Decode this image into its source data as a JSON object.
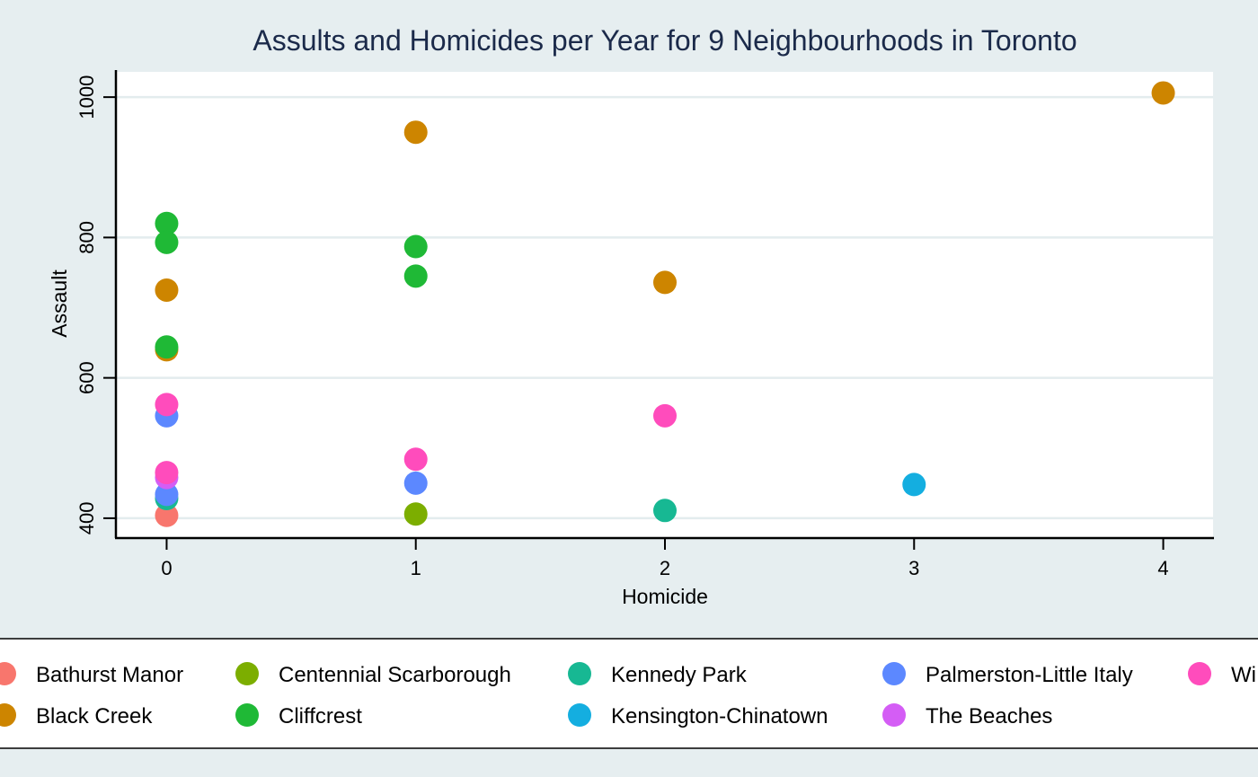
{
  "chart_data": {
    "type": "scatter",
    "title": "Assults and Homicides per Year for 9 Neighbourhoods in Toronto",
    "xlabel": "Homicide",
    "ylabel": "Assault",
    "xlim": [
      -0.2,
      4.2
    ],
    "ylim": [
      373,
      1036
    ],
    "x_ticks": [
      "0",
      "1",
      "2",
      "3",
      "4"
    ],
    "y_ticks": [
      "400",
      "600",
      "800",
      "1000"
    ],
    "grid": "horizontal",
    "legend_position": "bottom",
    "series": [
      {
        "name": "Bathurst Manor",
        "color": "#f8766d",
        "points": [
          [
            0,
            404
          ]
        ]
      },
      {
        "name": "Black Creek",
        "color": "#cd8500",
        "points": [
          [
            0,
            725
          ],
          [
            0,
            640
          ],
          [
            1,
            950
          ],
          [
            2,
            736
          ],
          [
            4,
            1006
          ]
        ]
      },
      {
        "name": "Centennial Scarborough",
        "color": "#7cae00",
        "points": [
          [
            1,
            406
          ]
        ]
      },
      {
        "name": "Cliffcrest",
        "color": "#1fb936",
        "points": [
          [
            0,
            820
          ],
          [
            0,
            793
          ],
          [
            0,
            644
          ],
          [
            1,
            787
          ],
          [
            1,
            745
          ]
        ]
      },
      {
        "name": "Kennedy Park",
        "color": "#17b893",
        "points": [
          [
            0,
            428
          ],
          [
            2,
            411
          ]
        ]
      },
      {
        "name": "Kensington-Chinatown",
        "color": "#14aee0",
        "points": [
          [
            3,
            448
          ]
        ]
      },
      {
        "name": "Palmerston-Little Italy",
        "color": "#5c88ff",
        "points": [
          [
            0,
            546
          ],
          [
            0,
            434
          ],
          [
            1,
            450
          ]
        ]
      },
      {
        "name": "The Beaches",
        "color": "#d45df5",
        "points": [
          [
            0,
            458
          ]
        ]
      },
      {
        "name": "Wi",
        "color": "#ff4cbc",
        "points": [
          [
            0,
            562
          ],
          [
            0,
            465
          ],
          [
            1,
            484
          ],
          [
            2,
            546
          ]
        ]
      }
    ]
  }
}
